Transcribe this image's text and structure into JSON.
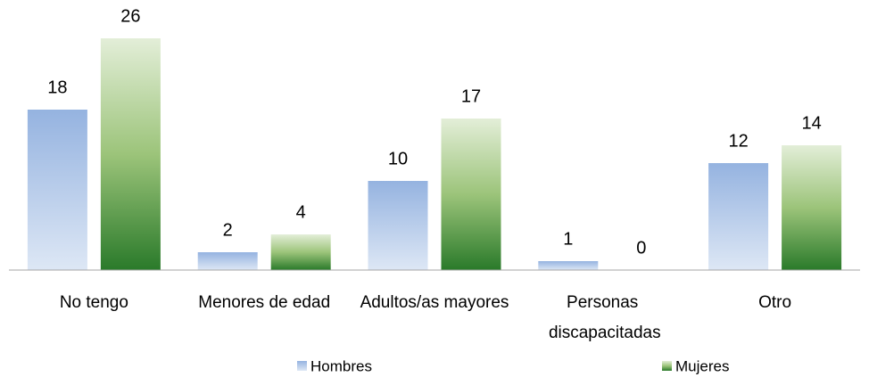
{
  "chart_data": {
    "type": "bar",
    "categories": [
      "No tengo",
      "Menores de edad",
      "Adultos/as mayores",
      "Personas discapacitadas",
      "Otro"
    ],
    "series": [
      {
        "name": "Hombres",
        "color": "#95b3e0",
        "values": [
          18,
          2,
          10,
          1,
          12
        ]
      },
      {
        "name": "Mujeres",
        "color": "#2a7a2a",
        "values": [
          26,
          4,
          17,
          0,
          14
        ]
      }
    ],
    "ylim": [
      0,
      26
    ],
    "legend": "bottom"
  }
}
